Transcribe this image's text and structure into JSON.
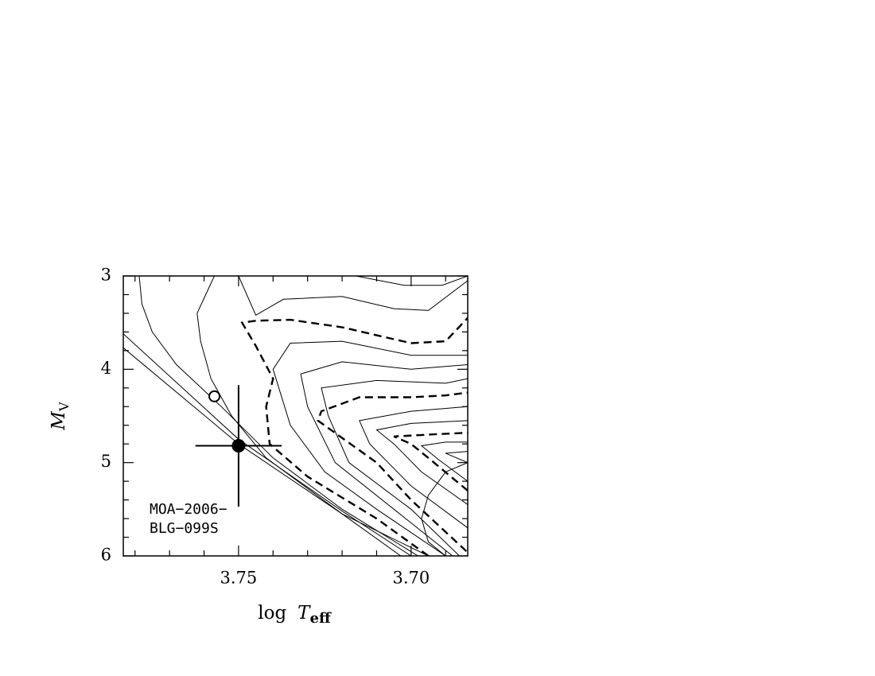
{
  "chart_data": {
    "type": "line",
    "xlabel": {
      "text": "log",
      "var": "T",
      "sub": "eff"
    },
    "ylabel": {
      "var": "M",
      "sub": "V"
    },
    "xlim": [
      3.7834,
      3.6836
    ],
    "ylim": [
      6,
      3
    ],
    "xticks": [
      3.75,
      {
        "value": 3.7,
        "label": "3.70"
      }
    ],
    "yticks": [
      3,
      4,
      5,
      6
    ],
    "xminor": [
      3.78,
      3.77,
      3.76,
      3.74,
      3.73,
      3.72,
      3.71,
      3.69
    ],
    "yminor": [
      3.2,
      3.4,
      3.6,
      3.8,
      4.2,
      4.4,
      4.6,
      4.8,
      5.2,
      5.4,
      5.6,
      5.8
    ],
    "annotation": [
      "MOA−2006−",
      "BLG−099S"
    ],
    "series": [
      {
        "color": "#000",
        "style": "solid",
        "x": [
          3.7834,
          3.75,
          3.72,
          3.703
        ],
        "values": [
          3.77,
          4.8,
          5.55,
          6.0
        ]
      },
      {
        "color": "#000",
        "style": "solid",
        "x": [
          3.7834,
          3.75,
          3.72,
          3.7
        ],
        "values": [
          3.62,
          4.75,
          5.52,
          6.0
        ]
      },
      {
        "color": "#000",
        "style": "solid",
        "x": [
          3.7788,
          3.778,
          3.775,
          3.768,
          3.755,
          3.74,
          3.72,
          3.698
        ],
        "values": [
          3.0,
          3.3,
          3.6,
          3.95,
          4.4,
          4.95,
          5.5,
          6.0
        ]
      },
      {
        "color": "#000",
        "style": "solid",
        "x": [
          3.757,
          3.762,
          3.761,
          3.758,
          3.752,
          3.742,
          3.72,
          3.695
        ],
        "values": [
          3.0,
          3.4,
          3.7,
          4.1,
          4.5,
          4.95,
          5.55,
          6.0
        ]
      },
      {
        "color": "#000",
        "style": "solid",
        "x": [
          3.75,
          3.745,
          3.737,
          3.72,
          3.705,
          3.695,
          3.6836
        ],
        "values": [
          3.0,
          3.42,
          3.25,
          3.22,
          3.35,
          3.37,
          3.05
        ]
      },
      {
        "color": "#000",
        "style": "solid",
        "x": [
          3.716,
          3.702,
          3.691,
          3.6836
        ],
        "values": [
          3.0,
          3.1,
          3.1,
          3.0
        ]
      },
      {
        "color": "#000",
        "style": "dashed",
        "x": [
          3.695,
          3.71,
          3.73,
          3.741,
          3.742,
          3.74,
          3.745,
          3.749,
          3.745,
          3.735,
          3.72,
          3.7,
          3.69,
          3.6836
        ],
        "values": [
          6.0,
          5.6,
          5.15,
          4.8,
          4.4,
          4.1,
          3.75,
          3.5,
          3.48,
          3.47,
          3.55,
          3.72,
          3.7,
          3.45
        ]
      },
      {
        "color": "#000",
        "style": "solid",
        "x": [
          3.69,
          3.71,
          3.725,
          3.735,
          3.74,
          3.735,
          3.72,
          3.7,
          3.6836
        ],
        "values": [
          6.0,
          5.5,
          5.1,
          4.6,
          4.0,
          3.72,
          3.7,
          3.85,
          3.85
        ]
      },
      {
        "color": "#000",
        "style": "solid",
        "x": [
          3.688,
          3.705,
          3.722,
          3.73,
          3.732,
          3.72,
          3.7,
          3.6836
        ],
        "values": [
          6.0,
          5.5,
          5.0,
          4.4,
          4.05,
          3.92,
          4.0,
          3.95
        ]
      },
      {
        "color": "#000",
        "style": "solid",
        "x": [
          3.686,
          3.7,
          3.718,
          3.724,
          3.726,
          3.71,
          3.69,
          3.6836
        ],
        "values": [
          6.0,
          5.5,
          5.0,
          4.5,
          4.2,
          4.12,
          4.15,
          4.1
        ]
      },
      {
        "color": "#000",
        "style": "dashed",
        "x": [
          3.684,
          3.7,
          3.71,
          3.727,
          3.726,
          3.715,
          3.7,
          3.69,
          3.6836
        ],
        "values": [
          5.95,
          5.4,
          5.0,
          4.55,
          4.45,
          4.3,
          4.3,
          4.28,
          4.25
        ]
      },
      {
        "color": "#000",
        "style": "solid",
        "x": [
          3.6836,
          3.7,
          3.712,
          3.715,
          3.7,
          3.6836
        ],
        "values": [
          5.7,
          5.25,
          4.8,
          4.55,
          4.45,
          4.4
        ]
      },
      {
        "color": "#000",
        "style": "solid",
        "x": [
          3.6836,
          3.697,
          3.705,
          3.71,
          3.7,
          3.6836
        ],
        "values": [
          5.45,
          5.1,
          4.8,
          4.65,
          4.58,
          4.55
        ]
      },
      {
        "color": "#000",
        "style": "dashed",
        "x": [
          3.6836,
          3.695,
          3.7,
          3.705,
          3.695,
          3.6836
        ],
        "values": [
          5.3,
          4.95,
          4.8,
          4.72,
          4.7,
          4.68
        ]
      },
      {
        "color": "#000",
        "style": "solid",
        "x": [
          3.6836,
          3.692,
          3.697,
          3.69,
          3.6836
        ],
        "values": [
          5.2,
          4.97,
          4.82,
          4.78,
          4.78
        ]
      },
      {
        "color": "#000",
        "style": "solid",
        "x": [
          3.6836,
          3.69,
          3.6836
        ],
        "values": [
          5.0,
          4.9,
          4.88
        ]
      },
      {
        "color": "#000",
        "style": "solid",
        "x": [
          3.6836,
          3.69,
          3.695,
          3.697,
          3.695,
          3.69
        ],
        "values": [
          5.0,
          5.1,
          5.35,
          5.6,
          5.85,
          6.0
        ]
      }
    ],
    "markers": [
      {
        "x": 3.75,
        "y": 4.82,
        "xerr": 0.0125,
        "yerr": 0.65,
        "filled": true
      },
      {
        "x": 3.757,
        "y": 4.29,
        "filled": false
      }
    ]
  }
}
